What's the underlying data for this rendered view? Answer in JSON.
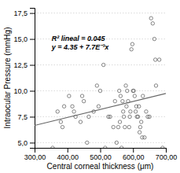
{
  "chart_data": {
    "type": "scatter",
    "xlabel": "Central corneal thickness (μm)",
    "ylabel": "Intraocular Pressure (mmHg)",
    "annotations": [
      "R² lineal = 0.045",
      "y = 4.35 + 7.7E⁻³x"
    ],
    "xlim": [
      300,
      700
    ],
    "ylim": [
      4.5,
      18.0
    ],
    "xticks": [
      {
        "value": 300,
        "label": "300,00"
      },
      {
        "value": 400,
        "label": "400,00"
      },
      {
        "value": 500,
        "label": "500,00"
      },
      {
        "value": 600,
        "label": "600,00"
      },
      {
        "value": 700,
        "label": "700,00"
      }
    ],
    "yticks": [
      {
        "value": 5.0,
        "label": "5,0"
      },
      {
        "value": 7.5,
        "label": "7,5"
      },
      {
        "value": 10.0,
        "label": "10,0"
      },
      {
        "value": 12.5,
        "label": "12,5"
      },
      {
        "value": 15.0,
        "label": "15,0"
      },
      {
        "value": 17.5,
        "label": "17,5"
      }
    ],
    "grid": "y",
    "series": [
      {
        "type": "scatter",
        "color": "#666666",
        "x": [
          355,
          370,
          380,
          385,
          390,
          405,
          415,
          420,
          425,
          440,
          445,
          450,
          460,
          465,
          480,
          490,
          495,
          500,
          510,
          515,
          525,
          530,
          540,
          545,
          550,
          555,
          558,
          560,
          562,
          565,
          568,
          570,
          572,
          575,
          578,
          580,
          582,
          585,
          588,
          590,
          592,
          595,
          598,
          600,
          602,
          605,
          608,
          610,
          612,
          615,
          618,
          620,
          622,
          625,
          628,
          630,
          635,
          640,
          645,
          650,
          655,
          660,
          665,
          668,
          670,
          680,
          690
        ],
        "values": [
          4.5,
          8.0,
          7.0,
          6.5,
          8.5,
          9.5,
          8.5,
          8.0,
          7.5,
          7.0,
          9.5,
          9.0,
          5.0,
          7.5,
          8.0,
          10.5,
          8.5,
          10.0,
          12.5,
          4.5,
          7.5,
          7.5,
          6.5,
          9.0,
          5.0,
          6.5,
          10.0,
          7.0,
          9.5,
          4.5,
          9.0,
          8.0,
          7.5,
          6.5,
          10.5,
          8.5,
          10.0,
          9.0,
          6.5,
          7.5,
          8.0,
          14.0,
          14.5,
          10.0,
          10.0,
          9.5,
          8.0,
          8.5,
          7.5,
          7.5,
          8.5,
          6.0,
          6.5,
          7.0,
          5.5,
          9.5,
          5.5,
          8.0,
          7.5,
          7.5,
          17.0,
          16.5,
          15.0,
          13.0,
          10.5,
          13.0,
          4.5
        ]
      },
      {
        "type": "line",
        "color": "#666666",
        "x": [
          300,
          700
        ],
        "values": [
          6.66,
          9.74
        ]
      }
    ]
  }
}
